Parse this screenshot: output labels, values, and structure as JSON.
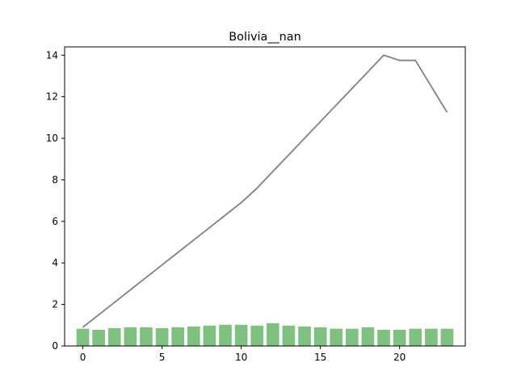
{
  "chart_data": {
    "type": "bar+line",
    "title": "Bolivia__nan",
    "xlabel": "",
    "ylabel": "",
    "x": [
      0,
      1,
      2,
      3,
      4,
      5,
      6,
      7,
      8,
      9,
      10,
      11,
      12,
      13,
      14,
      15,
      16,
      17,
      18,
      19,
      20,
      21,
      22,
      23
    ],
    "series": [
      {
        "type": "bar",
        "color": "#80c080",
        "values": [
          0.83,
          0.78,
          0.86,
          0.9,
          0.9,
          0.86,
          0.9,
          0.94,
          0.98,
          1.02,
          1.02,
          0.98,
          1.1,
          0.98,
          0.94,
          0.9,
          0.83,
          0.83,
          0.9,
          0.78,
          0.78,
          0.83,
          0.83,
          0.83
        ]
      },
      {
        "type": "line",
        "color": "#808080",
        "values": [
          0.9,
          1.5,
          2.1,
          2.7,
          3.3,
          3.9,
          4.5,
          5.1,
          5.7,
          6.3,
          6.9,
          7.6,
          8.4,
          9.2,
          10.0,
          10.8,
          11.6,
          12.4,
          13.2,
          14.0,
          13.75,
          13.75,
          12.5,
          11.25
        ]
      }
    ],
    "xlim": [
      -1.15,
      24.15
    ],
    "ylim": [
      0,
      14.4
    ],
    "xticks": [
      0,
      5,
      10,
      15,
      20
    ],
    "yticks": [
      0,
      2,
      4,
      6,
      8,
      10,
      12,
      14
    ],
    "grid": false,
    "legend": "none"
  }
}
